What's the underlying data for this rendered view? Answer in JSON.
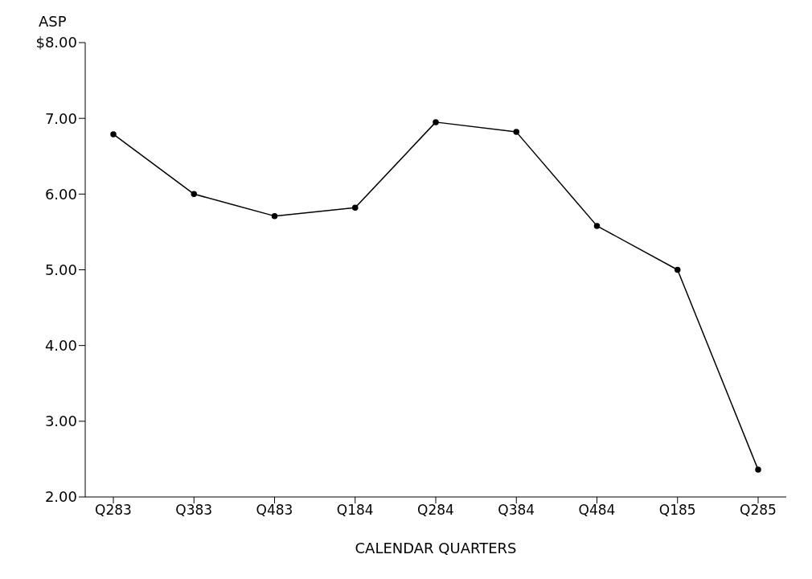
{
  "chart_data": {
    "type": "line",
    "ylabel": "ASP",
    "xlabel": "CALENDAR QUARTERS",
    "categories": [
      "Q283",
      "Q383",
      "Q483",
      "Q184",
      "Q284",
      "Q384",
      "Q484",
      "Q185",
      "Q285"
    ],
    "series": [
      {
        "color": "#000000",
        "values": [
          6.79,
          6.0,
          5.71,
          5.82,
          6.95,
          6.82,
          5.58,
          5.0,
          2.36
        ]
      }
    ],
    "ylim": [
      2,
      8
    ],
    "yticks": [
      {
        "value": 2,
        "label": "2.00"
      },
      {
        "value": 3,
        "label": "3.00"
      },
      {
        "value": 4,
        "label": "4.00"
      },
      {
        "value": 5,
        "label": "5.00"
      },
      {
        "value": 6,
        "label": "6.00"
      },
      {
        "value": 7,
        "label": "7.00"
      },
      {
        "value": 8,
        "label": "$8.00"
      }
    ],
    "grid": false,
    "legend": false,
    "marker": "circle",
    "line_style": "solid"
  }
}
